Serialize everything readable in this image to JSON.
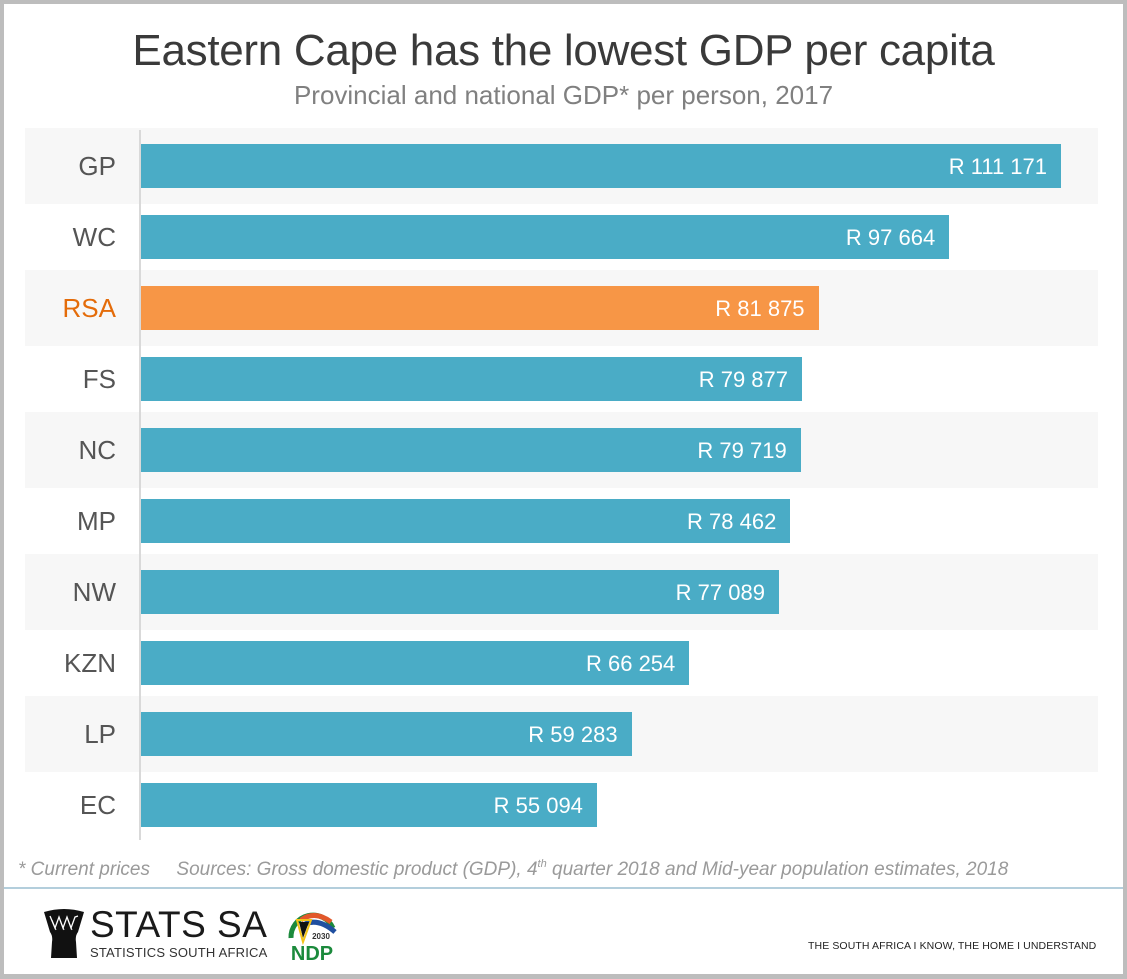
{
  "chart_data": {
    "type": "bar",
    "orientation": "horizontal",
    "title": "Eastern Cape has the lowest GDP per capita",
    "subtitle": "Provincial and national GDP* per person, 2017",
    "xlabel": "",
    "ylabel": "",
    "categories": [
      "GP",
      "WC",
      "RSA",
      "FS",
      "NC",
      "MP",
      "NW",
      "KZN",
      "LP",
      "EC"
    ],
    "values": [
      111171,
      97664,
      81875,
      79877,
      79719,
      78462,
      77089,
      66254,
      59283,
      55094
    ],
    "value_labels": [
      "R 111 171",
      "R 97 664",
      "R 81 875",
      "R 79 877",
      "R 79 719",
      "R 78 462",
      "R 77 089",
      "R 66 254",
      "R 59 283",
      "R 55 094"
    ],
    "highlight": "RSA",
    "colors": {
      "default": "#4aacc6",
      "highlight": "#f79646",
      "highlight_label": "#e46c0a",
      "label": "#555555"
    },
    "xlim": [
      0,
      111171
    ],
    "grid": false,
    "legend": "none",
    "unit": "Rand per person (current prices)"
  },
  "footnote": {
    "note": "* Current prices",
    "sources_prefix": "Sources: Gross domestic product (GDP), 4",
    "sources_sup": "th",
    "sources_suffix": " quarter 2018 and Mid-year population estimates, 2018"
  },
  "footer": {
    "stats_logo_main": "STATS SA",
    "stats_logo_sub": "STATISTICS SOUTH AFRICA",
    "ndp_year": "2030",
    "ndp_text": "NDP",
    "slogan": "THE SOUTH AFRICA I KNOW, THE HOME I UNDERSTAND"
  }
}
